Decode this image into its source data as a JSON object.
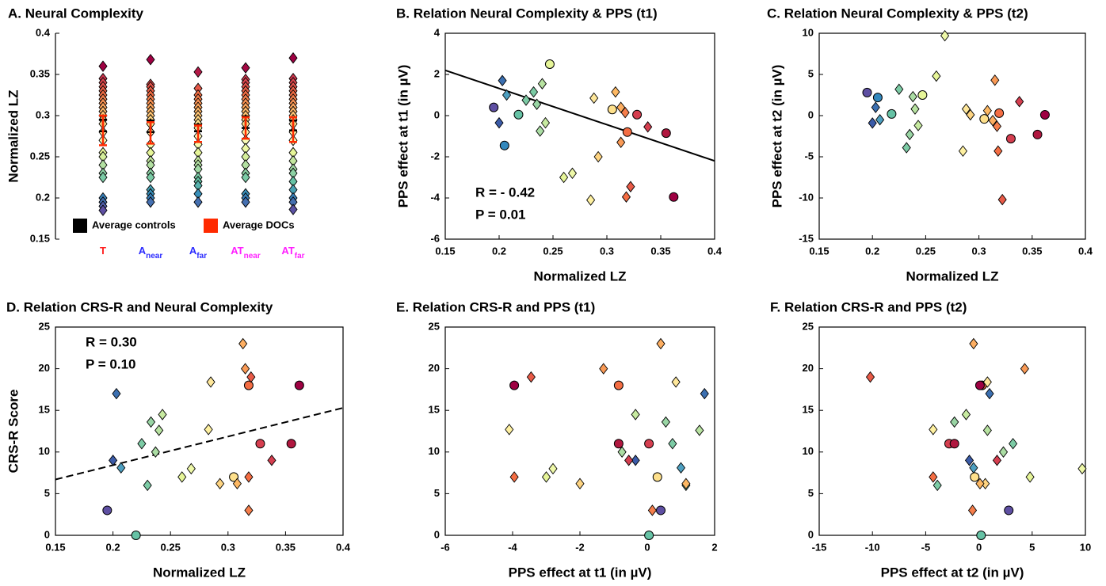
{
  "chart_data": [
    {
      "type": "strip",
      "title": "A. Neural Complexity",
      "ylabel": "Normalized LZ",
      "categories": [
        "T",
        "A",
        "A",
        "AT",
        "AT"
      ],
      "category_subscripts": [
        null,
        "near",
        "far",
        "near",
        "far"
      ],
      "category_colors": [
        "#ff2020",
        "#2b2bff",
        "#2b2bff",
        "#ff20ff",
        "#ff20ff"
      ],
      "ylim": [
        0.15,
        0.4
      ],
      "yticks": [
        0.15,
        0.2,
        0.25,
        0.3,
        0.35,
        0.4
      ],
      "colormap": "Spectral_r",
      "clim": [
        0.185,
        0.36
      ],
      "marker": "diamond",
      "points": [
        [
          0.36,
          0.345,
          0.34,
          0.335,
          0.33,
          0.325,
          0.32,
          0.315,
          0.31,
          0.305,
          0.3,
          0.295,
          0.29,
          0.28,
          0.27,
          0.255,
          0.25,
          0.24,
          0.23,
          0.225,
          0.2,
          0.195,
          0.19,
          0.185
        ],
        [
          0.368,
          0.338,
          0.335,
          0.33,
          0.325,
          0.32,
          0.315,
          0.31,
          0.305,
          0.3,
          0.295,
          0.29,
          0.28,
          0.265,
          0.255,
          0.245,
          0.24,
          0.23,
          0.225,
          0.21,
          0.205,
          0.2,
          0.195
        ],
        [
          0.353,
          0.333,
          0.325,
          0.32,
          0.315,
          0.31,
          0.305,
          0.3,
          0.295,
          0.29,
          0.285,
          0.275,
          0.265,
          0.255,
          0.245,
          0.24,
          0.235,
          0.225,
          0.22,
          0.215,
          0.205,
          0.195
        ],
        [
          0.358,
          0.344,
          0.34,
          0.335,
          0.33,
          0.325,
          0.32,
          0.315,
          0.31,
          0.305,
          0.3,
          0.295,
          0.29,
          0.28,
          0.27,
          0.26,
          0.25,
          0.24,
          0.23,
          0.225,
          0.205,
          0.2,
          0.195
        ],
        [
          0.37,
          0.345,
          0.34,
          0.335,
          0.33,
          0.325,
          0.32,
          0.315,
          0.31,
          0.305,
          0.3,
          0.295,
          0.29,
          0.28,
          0.27,
          0.255,
          0.245,
          0.235,
          0.23,
          0.22,
          0.21,
          0.2,
          0.195,
          0.186
        ]
      ],
      "error_bars": [
        {
          "name": "Average controls",
          "color": "#000000",
          "values": [
            0.288,
            0.287,
            0.285,
            0.292,
            0.288
          ],
          "errors": [
            0.007,
            0.007,
            0.004,
            0.007,
            0.006
          ]
        },
        {
          "name": "Average DOCs",
          "color": "#ff2a00",
          "values": [
            0.282,
            0.279,
            0.278,
            0.285,
            0.283
          ],
          "errors": [
            0.018,
            0.013,
            0.01,
            0.013,
            0.015
          ]
        }
      ],
      "legend": "lower center"
    },
    {
      "type": "scatter",
      "title": "B. Relation Neural Complexity & PPS (t1)",
      "xlabel": "Normalized LZ",
      "ylabel": "PPS effect at t1 (in µV)",
      "xlim": [
        0.15,
        0.4
      ],
      "xticks": [
        0.15,
        0.2,
        0.25,
        0.3,
        0.35,
        0.4
      ],
      "ylim": [
        -6,
        4
      ],
      "yticks": [
        -6,
        -4,
        -2,
        0,
        2,
        4
      ],
      "series": [
        {
          "marker": "circle",
          "x": [
            0.195,
            0.205,
            0.218,
            0.247,
            0.305,
            0.319,
            0.328,
            0.355,
            0.362
          ],
          "y": [
            0.4,
            -1.45,
            0.05,
            2.5,
            0.3,
            -0.8,
            0.05,
            -0.85,
            -3.95
          ],
          "colors": [
            "#5e4fa2",
            "#3288bd",
            "#66c2a5",
            "#e6f598",
            "#fee08b",
            "#f46d43",
            "#d53e4f",
            "#b0173f",
            "#9e0142"
          ]
        },
        {
          "marker": "diamond",
          "x": [
            0.2,
            0.203,
            0.207,
            0.225,
            0.232,
            0.235,
            0.238,
            0.24,
            0.243,
            0.26,
            0.268,
            0.285,
            0.288,
            0.292,
            0.308,
            0.313,
            0.313,
            0.317,
            0.318,
            0.322,
            0.338
          ],
          "y": [
            -0.35,
            1.7,
            1.0,
            0.75,
            1.15,
            0.55,
            -0.75,
            1.55,
            -0.35,
            -3.0,
            -2.8,
            -4.1,
            0.85,
            -2.0,
            1.15,
            0.4,
            -1.3,
            0.15,
            -3.95,
            -3.45,
            -0.55
          ],
          "colors": [
            "#3b5ba8",
            "#3b6fb0",
            "#4d9fc0",
            "#7ccba5",
            "#7ccba5",
            "#99d5a4",
            "#abdda4",
            "#b8e3a1",
            "#c7eaa0",
            "#e6f598",
            "#eef8a8",
            "#fef0a0",
            "#fee79a",
            "#fed481",
            "#fdb863",
            "#fdae61",
            "#f99a56",
            "#f67e4b",
            "#f46d43",
            "#e85a47",
            "#d53e4f"
          ]
        }
      ],
      "fit": {
        "x": [
          0.15,
          0.4
        ],
        "y": [
          2.2,
          -2.2
        ],
        "style": "solid"
      },
      "annotations": [
        "R = - 0.42",
        "P = 0.01"
      ],
      "annotation_corner": "lower left"
    },
    {
      "type": "scatter",
      "title": "C. Relation Neural Complexity & PPS (t2)",
      "xlabel": "Normalized LZ",
      "ylabel": "PPS effect at t2 (in µV)",
      "xlim": [
        0.15,
        0.4
      ],
      "xticks": [
        0.15,
        0.2,
        0.25,
        0.3,
        0.35,
        0.4
      ],
      "ylim": [
        -15,
        10
      ],
      "yticks": [
        -15,
        -10,
        -5,
        0,
        5,
        10
      ],
      "series": [
        {
          "marker": "circle",
          "x": [
            0.195,
            0.205,
            0.218,
            0.247,
            0.305,
            0.319,
            0.33,
            0.355,
            0.362
          ],
          "y": [
            2.8,
            2.2,
            0.2,
            2.5,
            -0.4,
            0.3,
            -2.8,
            -2.3,
            0.1
          ],
          "colors": [
            "#5e4fa2",
            "#3288bd",
            "#66c2a5",
            "#e6f598",
            "#fee08b",
            "#f46d43",
            "#d53e4f",
            "#b0173f",
            "#9e0142"
          ]
        },
        {
          "marker": "diamond",
          "x": [
            0.2,
            0.203,
            0.207,
            0.225,
            0.232,
            0.235,
            0.238,
            0.24,
            0.243,
            0.26,
            0.268,
            0.285,
            0.288,
            0.292,
            0.308,
            0.313,
            0.315,
            0.317,
            0.318,
            0.322,
            0.338
          ],
          "y": [
            -0.9,
            1.0,
            -0.5,
            3.2,
            -3.9,
            -2.3,
            2.3,
            0.8,
            -1.2,
            4.8,
            9.7,
            -4.3,
            0.8,
            0.1,
            0.6,
            -0.6,
            4.3,
            -1.3,
            -4.3,
            -10.2,
            1.7
          ],
          "colors": [
            "#3b5ba8",
            "#3b6fb0",
            "#4d9fc0",
            "#7ccba5",
            "#7ccba5",
            "#99d5a4",
            "#abdda4",
            "#b8e3a1",
            "#c7eaa0",
            "#e6f598",
            "#eef8a8",
            "#fef0a0",
            "#fee79a",
            "#fed481",
            "#fdb863",
            "#fdae61",
            "#f99a56",
            "#f67e4b",
            "#f46d43",
            "#e85a47",
            "#d53e4f"
          ]
        }
      ]
    },
    {
      "type": "scatter",
      "title": "D.  Relation CRS-R and Neural Complexity",
      "xlabel": "Normalized LZ",
      "ylabel": "CRS-R Score",
      "xlim": [
        0.15,
        0.4
      ],
      "xticks": [
        0.15,
        0.2,
        0.25,
        0.3,
        0.35,
        0.4
      ],
      "ylim": [
        0,
        25
      ],
      "yticks": [
        0,
        5,
        10,
        15,
        20,
        25
      ],
      "series": [
        {
          "marker": "circle",
          "x": [
            0.195,
            0.22,
            0.305,
            0.318,
            0.328,
            0.355,
            0.362
          ],
          "y": [
            3,
            0,
            7,
            18,
            11,
            11,
            18
          ],
          "colors": [
            "#5e4fa2",
            "#66c2a5",
            "#fee08b",
            "#f46d43",
            "#d53e4f",
            "#b0173f",
            "#9e0142"
          ]
        },
        {
          "marker": "diamond",
          "x": [
            0.2,
            0.203,
            0.207,
            0.225,
            0.23,
            0.233,
            0.237,
            0.24,
            0.243,
            0.26,
            0.268,
            0.283,
            0.285,
            0.293,
            0.308,
            0.313,
            0.315,
            0.32,
            0.318,
            0.318,
            0.338
          ],
          "y": [
            9,
            17,
            8.1,
            11,
            6,
            13.6,
            10,
            12.6,
            14.5,
            7,
            8,
            12.7,
            18.4,
            6.2,
            6.2,
            23,
            20,
            19,
            7,
            3,
            9
          ],
          "colors": [
            "#3b5ba8",
            "#3b6fb0",
            "#4d9fc0",
            "#7ccba5",
            "#7ccba5",
            "#99d5a4",
            "#abdda4",
            "#b8e3a1",
            "#c7eaa0",
            "#e6f598",
            "#eef8a8",
            "#fef0a0",
            "#fee79a",
            "#fed481",
            "#fdb863",
            "#fdae61",
            "#f99a56",
            "#e85a47",
            "#f46d43",
            "#f67e4b",
            "#d53e4f"
          ]
        }
      ],
      "fit": {
        "x": [
          0.15,
          0.4
        ],
        "y": [
          6.7,
          15.3
        ],
        "style": "dashed"
      },
      "annotations": [
        "R = 0.30",
        "P = 0.10"
      ],
      "annotation_corner": "upper left"
    },
    {
      "type": "scatter",
      "title": "E. Relation CRS-R and PPS (t1)",
      "xlabel": "PPS effect at t1 (in µV)",
      "xlim": [
        -6,
        2
      ],
      "xticks": [
        -6,
        -4,
        -2,
        0,
        2
      ],
      "ylim": [
        0,
        25
      ],
      "yticks": [
        0,
        5,
        10,
        15,
        20,
        25
      ],
      "series": [
        {
          "marker": "circle",
          "x": [
            0.4,
            0.05,
            0.3,
            -0.85,
            0.05,
            -0.85,
            -3.95
          ],
          "y": [
            3,
            0,
            7,
            18,
            11,
            11,
            18
          ],
          "colors": [
            "#5e4fa2",
            "#66c2a5",
            "#fee08b",
            "#f46d43",
            "#d53e4f",
            "#b0173f",
            "#9e0142"
          ]
        },
        {
          "marker": "diamond",
          "x": [
            -0.35,
            1.7,
            1.0,
            0.75,
            1.15,
            0.55,
            -0.75,
            1.55,
            -0.35,
            -3.0,
            -2.8,
            -4.1,
            0.85,
            -2.0,
            1.15,
            0.4,
            -1.3,
            -3.45,
            -3.95,
            0.15,
            -0.55
          ],
          "y": [
            9,
            17,
            8.1,
            11,
            6,
            13.6,
            10,
            12.6,
            14.5,
            7,
            8,
            12.7,
            18.4,
            6.2,
            6.2,
            23,
            20,
            19,
            7,
            3,
            9
          ],
          "colors": [
            "#3b5ba8",
            "#3b6fb0",
            "#4d9fc0",
            "#7ccba5",
            "#7ccba5",
            "#99d5a4",
            "#abdda4",
            "#b8e3a1",
            "#c7eaa0",
            "#e6f598",
            "#eef8a8",
            "#fef0a0",
            "#fee79a",
            "#fed481",
            "#fdb863",
            "#fdae61",
            "#f99a56",
            "#e85a47",
            "#f46d43",
            "#f67e4b",
            "#d53e4f"
          ]
        }
      ]
    },
    {
      "type": "scatter",
      "title": "F. Relation CRS-R and  PPS (t2)",
      "xlabel": "PPS effect at t2 (in µV)",
      "xlim": [
        -15,
        10
      ],
      "xticks": [
        -15,
        -10,
        -5,
        0,
        5,
        10
      ],
      "ylim": [
        0,
        25
      ],
      "yticks": [
        0,
        5,
        10,
        15,
        20,
        25
      ],
      "series": [
        {
          "marker": "circle",
          "x": [
            2.8,
            0.2,
            -0.4,
            0.3,
            -2.8,
            -2.3,
            0.1
          ],
          "y": [
            3,
            0,
            7,
            18,
            11,
            11,
            18
          ],
          "colors": [
            "#5e4fa2",
            "#66c2a5",
            "#fee08b",
            "#f46d43",
            "#d53e4f",
            "#b0173f",
            "#9e0142"
          ]
        },
        {
          "marker": "diamond",
          "x": [
            -0.9,
            1.0,
            -0.5,
            3.2,
            -3.9,
            -2.3,
            2.3,
            0.8,
            -1.2,
            4.8,
            9.7,
            -4.3,
            0.8,
            0.6,
            0.1,
            -0.5,
            4.3,
            -10.2,
            -4.3,
            -0.6,
            1.7
          ],
          "y": [
            9,
            17,
            8.1,
            11,
            6,
            13.6,
            10,
            12.6,
            14.5,
            7,
            8,
            12.7,
            18.4,
            6.2,
            6.2,
            23,
            20,
            19,
            7,
            3,
            9
          ],
          "colors": [
            "#3b5ba8",
            "#3b6fb0",
            "#4d9fc0",
            "#7ccba5",
            "#7ccba5",
            "#99d5a4",
            "#abdda4",
            "#b8e3a1",
            "#c7eaa0",
            "#e6f598",
            "#eef8a8",
            "#fef0a0",
            "#fee79a",
            "#fed481",
            "#fdb863",
            "#fdae61",
            "#f99a56",
            "#e85a47",
            "#f46d43",
            "#f67e4b",
            "#d53e4f"
          ]
        }
      ]
    }
  ]
}
